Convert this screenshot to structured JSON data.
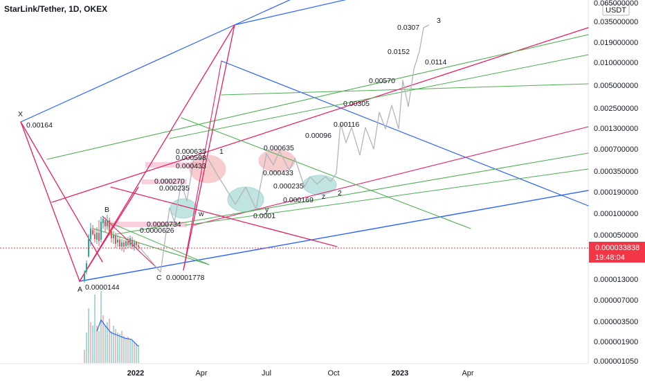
{
  "chart_data": {
    "type": "line",
    "title": "StarLink/Tether, 1D, OKEX",
    "y_scale": "log",
    "currency_badge": "USDT",
    "y_ticks": [
      "0.065000000",
      "0.035000000",
      "0.019000000",
      "0.010000000",
      "0.005000000",
      "0.002500000",
      "0.001300000",
      "0.000700000",
      "0.000350000",
      "0.000190000",
      "0.000100000",
      "0.000050000",
      "0.000013000",
      "0.000007000",
      "0.000003500",
      "0.000001900",
      "0.000001050"
    ],
    "x_ticks": [
      "2022",
      "Apr",
      "Jul",
      "Oct",
      "2023",
      "Apr"
    ],
    "last_price": "0.000033838",
    "countdown": "19:48:04",
    "pivot_labels": [
      "X",
      "A",
      "B",
      "C",
      "w",
      "y",
      "z",
      "1",
      "2",
      "3"
    ],
    "price_labels": [
      "0.00164",
      "0.0000144",
      "0.00001778",
      "0.0000626",
      "0.0000734",
      "0.000235",
      "0.000270",
      "0.000433",
      "0.000598",
      "0.000635",
      "0.000635",
      "0.000433",
      "0.000235",
      "0.000169",
      "0.0001",
      "0.00096",
      "0.00116",
      "0.00305",
      "0.00570",
      "0.0114",
      "0.0152",
      "0.0307"
    ],
    "colors": {
      "up": "#26a69a",
      "down": "#ef5350",
      "pitchfork_blue": "#2962ff",
      "pitchfork_red": "#e91e63",
      "pitchfork_green": "#4caf50",
      "projection": "#b2b5be",
      "volume_ma": "#2962ff",
      "last_price": "#f23645"
    },
    "grid": false
  }
}
